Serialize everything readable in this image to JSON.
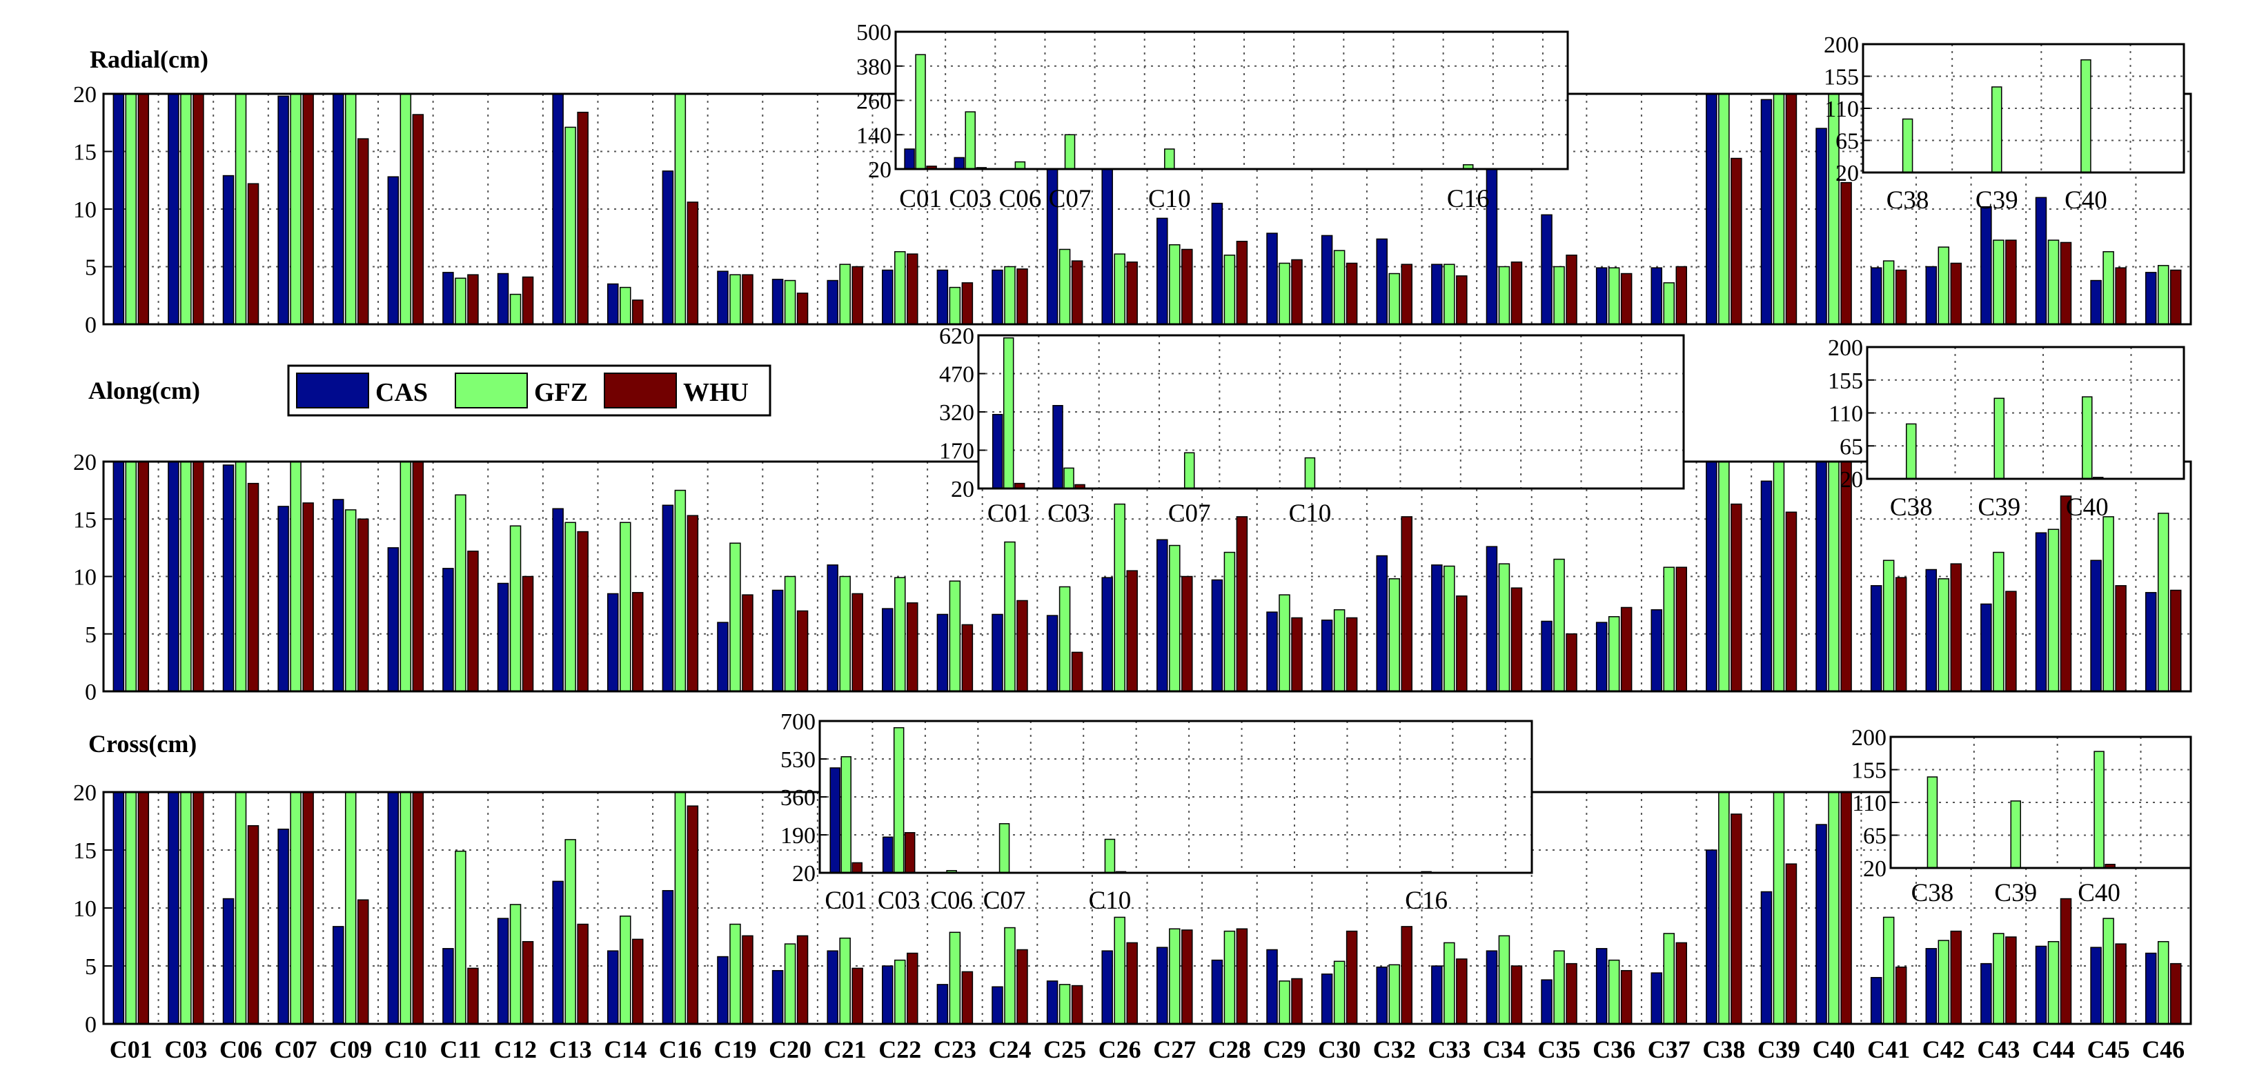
{
  "chart_data": {
    "type": "bar",
    "legend": {
      "placement": "between-top-and-middle-panels",
      "entries": [
        "CAS",
        "GFZ",
        "WHU"
      ]
    },
    "colors": {
      "CAS": "#000a8e",
      "GFZ": "#80ff72",
      "WHU": "#720000"
    },
    "categories": [
      "C01",
      "C03",
      "C06",
      "C07",
      "C09",
      "C10",
      "C11",
      "C12",
      "C13",
      "C14",
      "C16",
      "C19",
      "C20",
      "C21",
      "C22",
      "C23",
      "C24",
      "C25",
      "C26",
      "C27",
      "C28",
      "C29",
      "C30",
      "C32",
      "C33",
      "C34",
      "C35",
      "C36",
      "C37",
      "C38",
      "C39",
      "C40",
      "C41",
      "C42",
      "C43",
      "C44",
      "C45",
      "C46"
    ],
    "panels": [
      {
        "title": "Radial(cm)",
        "ylim": [
          0,
          20
        ],
        "yticks": [
          0,
          5,
          10,
          15,
          20
        ],
        "grid": true,
        "series": [
          {
            "name": "CAS",
            "values": [
              20,
              20,
              12.9,
              19.8,
              20,
              12.8,
              4.5,
              4.4,
              20,
              3.5,
              13.3,
              4.6,
              3.9,
              3.8,
              4.7,
              4.7,
              4.7,
              20,
              20,
              9.2,
              10.5,
              7.9,
              7.7,
              7.4,
              5.2,
              20,
              9.5,
              4.9,
              4.9,
              20,
              19.5,
              17.0,
              4.9,
              5.0,
              10.2,
              11.0,
              3.8,
              4.5
            ]
          },
          {
            "name": "GFZ",
            "values": [
              20,
              20,
              20,
              20,
              20,
              20,
              4.0,
              2.6,
              17.1,
              3.2,
              20,
              4.3,
              3.8,
              5.2,
              6.3,
              3.2,
              5.0,
              6.5,
              6.1,
              6.9,
              6.0,
              5.3,
              6.4,
              4.4,
              5.2,
              5.0,
              5.0,
              4.9,
              3.6,
              20,
              20,
              20,
              5.5,
              6.7,
              7.3,
              7.3,
              6.3,
              5.1
            ]
          },
          {
            "name": "WHU",
            "values": [
              20,
              20,
              12.2,
              20,
              16.1,
              18.2,
              4.3,
              4.1,
              18.4,
              2.1,
              10.6,
              4.3,
              2.7,
              5.0,
              6.1,
              3.6,
              4.8,
              5.5,
              5.4,
              6.5,
              7.2,
              5.6,
              5.3,
              5.2,
              4.2,
              5.4,
              6.0,
              4.4,
              5.0,
              14.4,
              20,
              12.3,
              4.7,
              5.3,
              7.3,
              7.1,
              4.9,
              4.7
            ]
          }
        ],
        "insets": [
          {
            "ylim": [
              20,
              500
            ],
            "yticks": [
              20,
              140,
              260,
              380,
              500
            ],
            "categories": [
              "C01",
              "C03",
              "C06",
              "C07",
              "C10",
              "C16"
            ],
            "shown_labels": [
              "C01",
              "C03",
              "C06",
              "C07",
              "C10",
              "C16"
            ],
            "series": [
              {
                "name": "CAS",
                "values": [
                  90,
                  60,
                  12,
                  5,
                  3,
                  3
                ]
              },
              {
                "name": "GFZ",
                "values": [
                  420,
                  220,
                  45,
                  140,
                  90,
                  35
                ]
              },
              {
                "name": "WHU",
                "values": [
                  30,
                  25,
                  12,
                  5,
                  3,
                  3
                ]
              }
            ]
          },
          {
            "ylim": [
              20,
              200
            ],
            "yticks": [
              20,
              65,
              110,
              155,
              200
            ],
            "categories": [
              "C38",
              "C39",
              "C40"
            ],
            "shown_labels": [
              "C38",
              "C39",
              "C40"
            ],
            "series": [
              {
                "name": "CAS",
                "values": [
                  20,
                  5,
                  5
                ]
              },
              {
                "name": "GFZ",
                "values": [
                  95,
                  140,
                  178
                ]
              },
              {
                "name": "WHU",
                "values": [
                  5,
                  5,
                  5
                ]
              }
            ]
          }
        ]
      },
      {
        "title": "Along(cm)",
        "ylim": [
          0,
          20
        ],
        "yticks": [
          0,
          5,
          10,
          15,
          20
        ],
        "grid": true,
        "series": [
          {
            "name": "CAS",
            "values": [
              20,
              20,
              19.7,
              16.1,
              16.7,
              12.5,
              10.7,
              9.4,
              15.9,
              8.5,
              16.2,
              6.0,
              8.8,
              11.0,
              7.2,
              6.7,
              6.7,
              6.6,
              9.9,
              13.2,
              9.7,
              6.9,
              6.2,
              11.8,
              11.0,
              12.6,
              6.1,
              6.0,
              7.1,
              20,
              18.3,
              20,
              9.2,
              10.6,
              7.6,
              13.8,
              11.4,
              8.6
            ]
          },
          {
            "name": "GFZ",
            "values": [
              20,
              20,
              20,
              20,
              15.8,
              20,
              17.1,
              14.4,
              14.7,
              14.7,
              17.5,
              12.9,
              10.0,
              10.0,
              9.9,
              9.6,
              13.0,
              9.1,
              16.3,
              12.7,
              12.1,
              8.4,
              7.1,
              9.8,
              10.9,
              11.1,
              11.5,
              6.5,
              10.8,
              20,
              20,
              20,
              11.4,
              9.8,
              12.1,
              14.1,
              15.2,
              15.5
            ]
          },
          {
            "name": "WHU",
            "values": [
              20,
              20,
              18.1,
              16.4,
              15.0,
              20,
              12.2,
              10.0,
              13.9,
              8.6,
              15.3,
              8.4,
              7.0,
              8.5,
              7.7,
              5.8,
              7.9,
              3.4,
              10.5,
              10.0,
              15.2,
              6.4,
              6.4,
              15.2,
              8.3,
              9.0,
              5.0,
              7.3,
              10.8,
              16.3,
              15.6,
              20,
              9.9,
              11.1,
              8.7,
              17.0,
              9.2,
              8.8
            ]
          }
        ],
        "insets": [
          {
            "ylim": [
              20,
              620
            ],
            "yticks": [
              20,
              170,
              320,
              470,
              620
            ],
            "categories": [
              "C01",
              "C03",
              "C07",
              "C10"
            ],
            "shown_labels": [
              "C01",
              "C03",
              "C07",
              "C10"
            ],
            "series": [
              {
                "name": "CAS",
                "values": [
                  310,
                  345,
                  5,
                  3
                ]
              },
              {
                "name": "GFZ",
                "values": [
                  610,
                  100,
                  160,
                  140
                ]
              },
              {
                "name": "WHU",
                "values": [
                  40,
                  35,
                  5,
                  3
                ]
              }
            ]
          },
          {
            "ylim": [
              20,
              200
            ],
            "yticks": [
              20,
              65,
              110,
              155,
              200
            ],
            "categories": [
              "C38",
              "C39",
              "C40"
            ],
            "shown_labels": [
              "C38",
              "C39",
              "C40"
            ],
            "series": [
              {
                "name": "CAS",
                "values": [
                  5,
                  5,
                  5
                ]
              },
              {
                "name": "GFZ",
                "values": [
                  95,
                  130,
                  132
                ]
              },
              {
                "name": "WHU",
                "values": [
                  5,
                  5,
                  22
                ]
              }
            ]
          }
        ]
      },
      {
        "title": "Cross(cm)",
        "ylim": [
          0,
          20
        ],
        "yticks": [
          0,
          5,
          10,
          15,
          20
        ],
        "grid": true,
        "series": [
          {
            "name": "CAS",
            "values": [
              20,
              20,
              10.8,
              16.8,
              8.4,
              20,
              6.5,
              9.1,
              12.3,
              6.3,
              11.5,
              5.8,
              4.6,
              6.3,
              5.0,
              3.4,
              3.2,
              3.7,
              6.3,
              6.6,
              5.5,
              6.4,
              4.3,
              4.9,
              5.0,
              6.3,
              3.8,
              6.5,
              4.4,
              15.0,
              11.4,
              17.2,
              4.0,
              6.5,
              5.2,
              6.7,
              6.6,
              6.1
            ]
          },
          {
            "name": "GFZ",
            "values": [
              20,
              20,
              20,
              20,
              20,
              20,
              14.9,
              10.3,
              15.9,
              9.3,
              20,
              8.6,
              6.9,
              7.4,
              5.5,
              7.9,
              8.3,
              3.4,
              9.2,
              8.2,
              8.0,
              3.7,
              5.4,
              5.1,
              7.0,
              7.6,
              6.3,
              5.5,
              7.8,
              20,
              20,
              20,
              9.2,
              7.2,
              7.8,
              7.1,
              9.1,
              7.1
            ]
          },
          {
            "name": "WHU",
            "values": [
              20,
              20,
              17.1,
              20,
              10.7,
              20,
              4.8,
              7.1,
              8.6,
              7.3,
              18.8,
              7.6,
              7.6,
              4.8,
              6.1,
              4.5,
              6.4,
              3.3,
              7.0,
              8.1,
              8.2,
              3.9,
              8.0,
              8.4,
              5.6,
              5.0,
              5.2,
              4.6,
              7.0,
              18.1,
              13.8,
              20,
              4.9,
              8.0,
              7.5,
              10.8,
              6.9,
              5.2
            ]
          }
        ],
        "insets": [
          {
            "ylim": [
              20,
              700
            ],
            "yticks": [
              20,
              190,
              360,
              530,
              700
            ],
            "categories": [
              "C01",
              "C03",
              "C06",
              "C07",
              "C10",
              "C16"
            ],
            "shown_labels": [
              "C01",
              "C03",
              "C06",
              "C07",
              "C10",
              "C16"
            ],
            "series": [
              {
                "name": "CAS",
                "values": [
                  490,
                  180,
                  5,
                  5,
                  3,
                  3
                ]
              },
              {
                "name": "GFZ",
                "values": [
                  540,
                  670,
                  30,
                  240,
                  170,
                  25
                ]
              },
              {
                "name": "WHU",
                "values": [
                  65,
                  200,
                  5,
                  5,
                  25,
                  3
                ]
              }
            ]
          },
          {
            "ylim": [
              20,
              200
            ],
            "yticks": [
              20,
              65,
              110,
              155,
              200
            ],
            "categories": [
              "C38",
              "C39",
              "C40"
            ],
            "shown_labels": [
              "C38",
              "C39",
              "C40"
            ],
            "series": [
              {
                "name": "CAS",
                "values": [
                  5,
                  5,
                  5
                ]
              },
              {
                "name": "GFZ",
                "values": [
                  145,
                  112,
                  180
                ]
              },
              {
                "name": "WHU",
                "values": [
                  5,
                  5,
                  25
                ]
              }
            ]
          }
        ]
      }
    ]
  }
}
